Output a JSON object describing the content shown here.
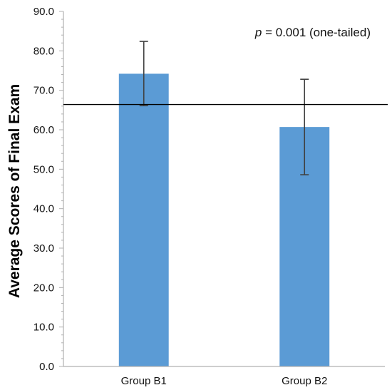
{
  "chart_data": {
    "type": "bar",
    "categories": [
      "Group B1",
      "Group B2"
    ],
    "values": [
      74.2,
      60.7
    ],
    "error_bars": {
      "upper": [
        82.4,
        72.8
      ],
      "lower": [
        66.1,
        48.6
      ]
    },
    "reference_line": 66.4,
    "ylabel": "Average Scores of Final Exam",
    "ylim": [
      0,
      90
    ],
    "y_ticks": [
      "0.0",
      "10.0",
      "20.0",
      "30.0",
      "40.0",
      "50.0",
      "60.0",
      "70.0",
      "80.0",
      "90.0"
    ],
    "annotation": {
      "p_symbol": "p",
      "text": " = 0.001 (one-tailed)"
    },
    "grid": false,
    "colors": {
      "bar": "#5B9BD5",
      "error_bar": "#404040",
      "reference_line": "#000000",
      "axis": "#b0b0b0"
    }
  }
}
